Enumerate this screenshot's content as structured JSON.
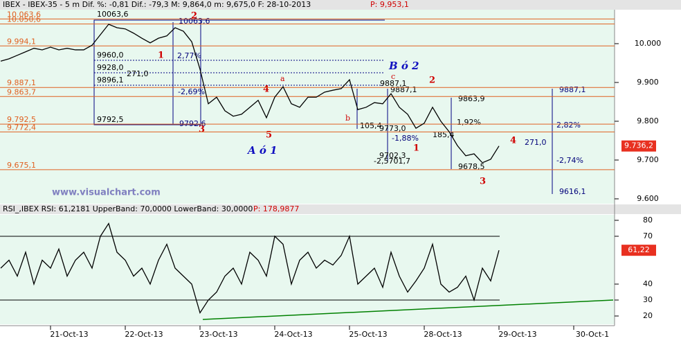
{
  "chart_data": [
    {
      "type": "line",
      "title": "IBEX - IBEX-35 -  5 m Dif. %: -0,81 Dif.: -79,3 M: 9,864,0 m: 9,675,0 F: 28-10-2013",
      "header_price": "P: 9,953,1",
      "watermark": "www.visualchart.com",
      "categories": [
        null,
        null,
        null,
        null,
        null,
        null,
        "21-Oct-13",
        null,
        null,
        null,
        null,
        null,
        null,
        null,
        null,
        "22-Oct-13",
        null,
        null,
        null,
        null,
        null,
        null,
        null,
        null,
        "23-Oct-13",
        null,
        null,
        null,
        null,
        null,
        null,
        null,
        null,
        "24-Oct-13",
        null,
        null,
        null,
        null,
        null,
        null,
        null,
        null,
        "25-Oct-13",
        null,
        null,
        null,
        null,
        null,
        null,
        null,
        null,
        "28-Oct-13",
        null,
        null,
        null,
        null,
        null,
        null,
        null,
        null,
        "29-Oct-13",
        null,
        null,
        null,
        null,
        null,
        null,
        null,
        null,
        "30-Oct-1",
        null,
        null,
        null,
        null,
        null
      ],
      "values": [
        9955,
        9961,
        9970,
        9979,
        9988,
        9984,
        9991,
        9984,
        9988,
        9984,
        9984,
        9996,
        10023,
        10050,
        10041,
        10038,
        10027,
        10014,
        10002,
        10014,
        10020,
        10041,
        10032,
        10005,
        9934,
        9845,
        9862,
        9827,
        9813,
        9818,
        9836,
        9854,
        9809,
        9862,
        9889,
        9845,
        9836,
        9862,
        9862,
        9875,
        9880,
        9884,
        9907,
        9830,
        9836,
        9848,
        9845,
        9871,
        9836,
        9818,
        9782,
        9795,
        9836,
        9800,
        9773,
        9737,
        9711,
        9716,
        9693,
        9702,
        9736.2,
        null,
        null,
        null,
        null,
        null,
        null,
        null,
        null,
        null,
        null,
        null,
        null,
        null,
        null
      ],
      "color": "#000000",
      "last_value": {
        "value": 9736.2,
        "label": "9.736,2"
      },
      "ylim": [
        9591,
        10087.5
      ],
      "yticks": [
        {
          "value": 10000,
          "label": "10.000"
        },
        {
          "value": 9900,
          "label": "9.900"
        },
        {
          "value": 9800,
          "label": "9.800"
        },
        {
          "value": 9700,
          "label": "9.700"
        },
        {
          "value": 9600,
          "label": "9.600"
        }
      ],
      "levels": [
        {
          "value": 10063.6,
          "label": "10.063,6"
        },
        {
          "value": 10050.6,
          "label": "10.050,6"
        },
        {
          "value": 9994.1,
          "label": "9.994,1"
        },
        {
          "value": 9887.1,
          "label": "9.887,1"
        },
        {
          "value": 9863.7,
          "label": "9.863,7"
        },
        {
          "value": 9792.5,
          "label": "9.792,5"
        },
        {
          "value": 9772.4,
          "label": "9.772,4"
        },
        {
          "value": 9675.1,
          "label": "9.675,1"
        }
      ],
      "level_color": "#e06020",
      "annotations": [
        "10063,6",
        "2",
        "10063,6",
        "9960,0",
        "1",
        "2,77%",
        "9928,0",
        "271,0",
        "9896,1",
        "-2,69%",
        "9792,5",
        "9792,6",
        "3",
        "4",
        "a",
        "5",
        "A ó 1",
        "B ó 2",
        "9887,1",
        "c",
        "2",
        "9887,1",
        "b",
        "105,4",
        "9773,0",
        "-1,88%",
        "1",
        "9702,3",
        "-2,5701,7",
        "185,4",
        "9863,9",
        "1,92%",
        "9678,5",
        "3",
        "4",
        "271,0",
        "9887,1",
        "2,82%",
        "-2,74%",
        "9616,1"
      ]
    },
    {
      "type": "line",
      "title": "RSI_,IBEX RSI: 61,2181 UpperBand: 70,0000 LowerBand: 30,0000",
      "header_price": "P: 178,9877",
      "values": [
        50,
        55,
        45,
        60,
        40,
        55,
        50,
        62,
        45,
        55,
        60,
        50,
        70,
        78,
        60,
        55,
        45,
        50,
        40,
        55,
        65,
        50,
        45,
        40,
        22,
        30,
        35,
        45,
        50,
        40,
        60,
        55,
        45,
        70,
        65,
        40,
        55,
        60,
        50,
        55,
        52,
        58,
        70,
        40,
        45,
        50,
        38,
        60,
        45,
        35,
        42,
        50,
        65,
        40,
        35,
        38,
        45,
        30,
        50,
        42,
        61.22,
        null,
        null,
        null,
        null,
        null,
        null,
        null,
        null,
        null,
        null,
        null,
        null,
        null,
        null
      ],
      "color": "#000000",
      "last_value": {
        "value": 61.22,
        "label": "61,22"
      },
      "ylim": [
        16.1,
        87.8
      ],
      "yticks": [
        80,
        70,
        40,
        30,
        20
      ],
      "bands": [
        70,
        30
      ]
    }
  ]
}
